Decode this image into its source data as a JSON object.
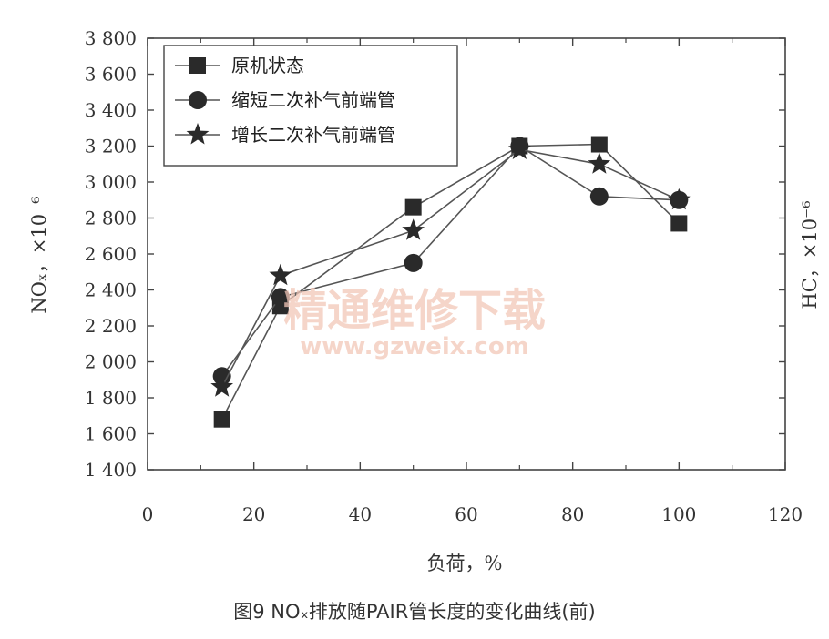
{
  "chart_data": {
    "type": "line",
    "caption": "图9   NOₓ排放随PAIR管长度的变化曲线(前)",
    "xlabel": "负荷，%",
    "ylabel_left": "NOₓ，×10⁻⁶",
    "ylabel_right": "HC，×10⁻⁶",
    "xlim": [
      0,
      120
    ],
    "ylim": [
      1400,
      3800
    ],
    "x_ticks": [
      "0",
      "20",
      "40",
      "60",
      "80",
      "100",
      "120"
    ],
    "y_ticks": [
      "1 400",
      "1 600",
      "1 800",
      "2 000",
      "2 200",
      "2 400",
      "2 600",
      "2 800",
      "3 000",
      "3 200",
      "3 400",
      "3 600",
      "3 800"
    ],
    "legend_position": "top-left",
    "series": [
      {
        "name": "原机状态",
        "marker": "square",
        "x": [
          14,
          25,
          50,
          70,
          85,
          100
        ],
        "y": [
          1680,
          2310,
          2860,
          3200,
          3210,
          2770
        ]
      },
      {
        "name": "缩短二次补气前端管",
        "marker": "circle",
        "x": [
          14,
          25,
          50,
          70,
          85,
          100
        ],
        "y": [
          1920,
          2360,
          2550,
          3200,
          2920,
          2900
        ]
      },
      {
        "name": "增长二次补气前端管",
        "marker": "star",
        "x": [
          14,
          25,
          50,
          70,
          85,
          100
        ],
        "y": [
          1860,
          2480,
          2730,
          3180,
          3100,
          2900
        ]
      }
    ]
  },
  "watermark": {
    "title": "精通维修下载",
    "url": "www.gzweix.com"
  }
}
